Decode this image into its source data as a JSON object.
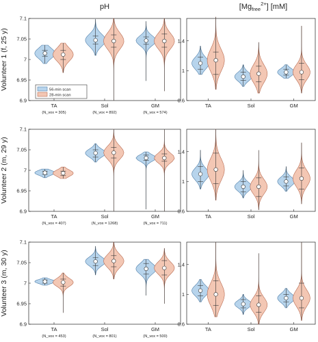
{
  "columns": {
    "ph_title": "pH",
    "mg_title_main": "[Mg",
    "mg_title_sub": "free",
    "mg_title_sup": "2+",
    "mg_title_unit": "] [mM]"
  },
  "legend": {
    "items": [
      {
        "label": "56-min scan",
        "color": "#b7d4ec",
        "edge": "#4f7ea8"
      },
      {
        "label": "28-min scan",
        "color": "#f3c7b4",
        "edge": "#b86a50"
      }
    ]
  },
  "categories": [
    "TA",
    "Sol",
    "GM"
  ],
  "chart_data": [
    {
      "type": "violin",
      "panel": "pH",
      "row_label": "Volunteer 1 (f, 25 y)",
      "categories": [
        "TA",
        "Sol",
        "GM"
      ],
      "n_vox": [
        "(N_vox = 305)",
        "(N_vox = 892)",
        "(N_vox = 574)"
      ],
      "ylim": [
        6.9,
        7.1
      ],
      "yticks": [
        "6.9",
        "6.95",
        "7",
        "7.05",
        "7.1"
      ],
      "series": [
        {
          "name": "56-min scan",
          "median": [
            7.015,
            7.047,
            7.046
          ],
          "q1": [
            7.008,
            7.038,
            7.037
          ],
          "q3": [
            7.022,
            7.057,
            7.055
          ],
          "wlo": [
            6.99,
            7.01,
            6.948
          ],
          "whi": [
            7.035,
            7.098,
            7.093
          ],
          "spread": [
            0.013,
            0.015,
            0.012
          ]
        },
        {
          "name": "28-min scan",
          "median": [
            7.012,
            7.045,
            7.045
          ],
          "q1": [
            7.0,
            7.03,
            7.03
          ],
          "q3": [
            7.022,
            7.06,
            7.062
          ],
          "wlo": [
            6.968,
            6.9,
            6.923
          ],
          "whi": [
            7.04,
            7.1,
            7.1
          ],
          "spread": [
            0.016,
            0.02,
            0.019
          ]
        }
      ]
    },
    {
      "type": "violin",
      "panel": "Mg",
      "row_label": "Volunteer 1 (f, 25 y)",
      "categories": [
        "TA",
        "Sol",
        "GM"
      ],
      "n_vox": [
        "",
        "",
        ""
      ],
      "ylim": [
        0.6,
        1.7
      ],
      "yticks": [
        "0.6",
        "1",
        "1.4"
      ],
      "series": [
        {
          "name": "56-min scan",
          "median": [
            1.1,
            0.92,
            0.98
          ],
          "q1": [
            1.02,
            0.87,
            0.94
          ],
          "q3": [
            1.18,
            0.98,
            1.02
          ],
          "wlo": [
            0.95,
            0.79,
            0.9
          ],
          "whi": [
            1.33,
            1.08,
            1.08
          ],
          "spread": [
            0.08,
            0.06,
            0.05
          ]
        },
        {
          "name": "28-min scan",
          "median": [
            1.14,
            0.96,
            0.98
          ],
          "q1": [
            0.95,
            0.85,
            0.88
          ],
          "q3": [
            1.25,
            1.06,
            1.1
          ],
          "wlo": [
            0.75,
            0.7,
            0.7
          ],
          "whi": [
            1.72,
            1.38,
            1.6
          ],
          "spread": [
            0.15,
            0.12,
            0.1
          ]
        }
      ]
    },
    {
      "type": "violin",
      "panel": "pH",
      "row_label": "Volunteer 2 (m, 29 y)",
      "categories": [
        "TA",
        "Sol",
        "GM"
      ],
      "n_vox": [
        "(N_vox = 407)",
        "(N_vox = 1268)",
        "(N_vox = 711)"
      ],
      "ylim": [
        6.9,
        7.1
      ],
      "yticks": [
        "6.9",
        "6.95",
        "7",
        "7.05",
        "7.1"
      ],
      "series": [
        {
          "name": "56-min scan",
          "median": [
            6.994,
            7.042,
            7.03
          ],
          "q1": [
            6.99,
            7.032,
            7.024
          ],
          "q3": [
            6.998,
            7.05,
            7.037
          ],
          "wlo": [
            6.982,
            7.02,
            6.905
          ],
          "whi": [
            7.003,
            7.065,
            7.045
          ],
          "spread": [
            0.006,
            0.01,
            0.008
          ]
        },
        {
          "name": "28-min scan",
          "median": [
            6.993,
            7.043,
            7.03
          ],
          "q1": [
            6.987,
            7.03,
            7.022
          ],
          "q3": [
            6.998,
            7.056,
            7.04
          ],
          "wlo": [
            6.98,
            6.9,
            6.9
          ],
          "whi": [
            7.008,
            7.1,
            7.1
          ],
          "spread": [
            0.008,
            0.016,
            0.012
          ]
        }
      ]
    },
    {
      "type": "violin",
      "panel": "Mg",
      "row_label": "Volunteer 2 (m, 29 y)",
      "categories": [
        "TA",
        "Sol",
        "GM"
      ],
      "n_vox": [
        "",
        "",
        ""
      ],
      "ylim": [
        0.6,
        1.7
      ],
      "yticks": [
        "0.6",
        "1",
        "1.4"
      ],
      "series": [
        {
          "name": "56-min scan",
          "median": [
            1.1,
            0.93,
            1.0
          ],
          "q1": [
            1.0,
            0.86,
            0.94
          ],
          "q3": [
            1.2,
            1.0,
            1.06
          ],
          "wlo": [
            0.9,
            0.78,
            0.87
          ],
          "whi": [
            1.42,
            1.15,
            1.2
          ],
          "spread": [
            0.08,
            0.06,
            0.06
          ]
        },
        {
          "name": "28-min scan",
          "median": [
            1.16,
            0.93,
            1.04
          ],
          "q1": [
            0.97,
            0.8,
            0.9
          ],
          "q3": [
            1.38,
            1.05,
            1.18
          ],
          "wlo": [
            0.75,
            0.62,
            0.7
          ],
          "whi": [
            1.7,
            1.42,
            1.52
          ],
          "spread": [
            0.15,
            0.1,
            0.11
          ]
        }
      ]
    },
    {
      "type": "violin",
      "panel": "pH",
      "row_label": "Volunteer 3 (m, 30 y)",
      "categories": [
        "TA",
        "Sol",
        "GM"
      ],
      "n_vox": [
        "(N_vox = 453)",
        "(N_vox = 801)",
        "(N_vox = 500)"
      ],
      "ylim": [
        6.9,
        7.1
      ],
      "yticks": [
        "6.9",
        "6.95",
        "7",
        "7.05",
        "7.1"
      ],
      "series": [
        {
          "name": "56-min scan",
          "median": [
            7.004,
            7.053,
            7.035
          ],
          "q1": [
            7.0,
            7.043,
            7.022
          ],
          "q3": [
            7.008,
            7.062,
            7.048
          ],
          "wlo": [
            6.995,
            7.02,
            6.97
          ],
          "whi": [
            7.013,
            7.09,
            7.058
          ],
          "spread": [
            0.005,
            0.011,
            0.013
          ]
        },
        {
          "name": "28-min scan",
          "median": [
            7.002,
            7.054,
            7.037
          ],
          "q1": [
            6.993,
            7.04,
            7.02
          ],
          "q3": [
            7.01,
            7.067,
            7.055
          ],
          "wlo": [
            6.928,
            7.01,
            6.95
          ],
          "whi": [
            7.025,
            7.1,
            7.085
          ],
          "spread": [
            0.01,
            0.016,
            0.015
          ]
        }
      ]
    },
    {
      "type": "violin",
      "panel": "Mg",
      "row_label": "Volunteer 3 (m, 30 y)",
      "categories": [
        "TA",
        "Sol",
        "GM"
      ],
      "n_vox": [
        "",
        "",
        ""
      ],
      "ylim": [
        0.6,
        1.7
      ],
      "yticks": [
        "0.6",
        "1",
        "1.4"
      ],
      "series": [
        {
          "name": "56-min scan",
          "median": [
            1.05,
            0.87,
            0.95
          ],
          "q1": [
            0.98,
            0.82,
            0.9
          ],
          "q3": [
            1.12,
            0.93,
            1.0
          ],
          "wlo": [
            0.9,
            0.73,
            0.82
          ],
          "whi": [
            1.2,
            1.0,
            1.08
          ],
          "spread": [
            0.07,
            0.05,
            0.06
          ]
        },
        {
          "name": "28-min scan",
          "median": [
            1.0,
            0.86,
            0.95
          ],
          "q1": [
            0.85,
            0.76,
            0.82
          ],
          "q3": [
            1.18,
            0.98,
            1.15
          ],
          "wlo": [
            0.7,
            0.6,
            0.65
          ],
          "whi": [
            1.7,
            1.55,
            1.7
          ],
          "spread": [
            0.15,
            0.1,
            0.11
          ]
        }
      ]
    }
  ]
}
